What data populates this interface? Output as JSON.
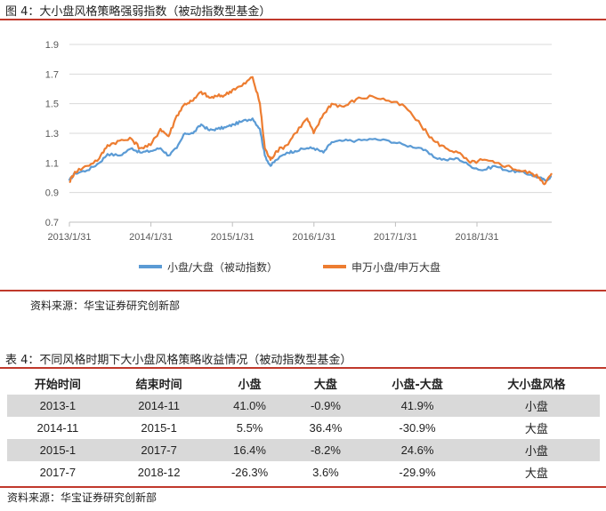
{
  "figure": {
    "title": "图 4：大小盘风格策略强弱指数（被动指数型基金）",
    "source": "资料来源：华宝证券研究创新部"
  },
  "colors": {
    "rule": "#c0392b",
    "series_blue": "#5b9bd5",
    "series_orange": "#ed7d31",
    "shade": "#d9d9d9"
  },
  "chart_data": {
    "type": "line",
    "title": "",
    "xlabel": "",
    "ylabel": "",
    "ylim": [
      0.7,
      1.9
    ],
    "y_ticks": [
      "0.7",
      "0.9",
      "1.1",
      "1.3",
      "1.5",
      "1.7",
      "1.9"
    ],
    "x_range": [
      2013.083,
      2019.0
    ],
    "x_ticks": [
      {
        "label": "2013/1/31",
        "t": 2013.083
      },
      {
        "label": "2014/1/31",
        "t": 2014.083
      },
      {
        "label": "2015/1/31",
        "t": 2015.083
      },
      {
        "label": "2016/1/31",
        "t": 2016.083
      },
      {
        "label": "2017/1/31",
        "t": 2017.083
      },
      {
        "label": "2018/1/31",
        "t": 2018.083
      }
    ],
    "legend_position": "bottom",
    "series": [
      {
        "name": "小盘/大盘（被动指数）",
        "color": "#5b9bd5",
        "points": [
          [
            2013.08,
            0.98
          ],
          [
            2013.15,
            1.03
          ],
          [
            2013.3,
            1.05
          ],
          [
            2013.45,
            1.1
          ],
          [
            2013.55,
            1.16
          ],
          [
            2013.7,
            1.15
          ],
          [
            2013.85,
            1.2
          ],
          [
            2013.95,
            1.17
          ],
          [
            2014.08,
            1.18
          ],
          [
            2014.2,
            1.2
          ],
          [
            2014.3,
            1.15
          ],
          [
            2014.4,
            1.2
          ],
          [
            2014.5,
            1.3
          ],
          [
            2014.6,
            1.3
          ],
          [
            2014.7,
            1.36
          ],
          [
            2014.8,
            1.32
          ],
          [
            2014.9,
            1.33
          ],
          [
            2015.0,
            1.34
          ],
          [
            2015.1,
            1.36
          ],
          [
            2015.2,
            1.38
          ],
          [
            2015.33,
            1.4
          ],
          [
            2015.42,
            1.33
          ],
          [
            2015.48,
            1.15
          ],
          [
            2015.55,
            1.08
          ],
          [
            2015.62,
            1.12
          ],
          [
            2015.75,
            1.17
          ],
          [
            2015.85,
            1.18
          ],
          [
            2016.0,
            1.2
          ],
          [
            2016.08,
            1.2
          ],
          [
            2016.2,
            1.17
          ],
          [
            2016.3,
            1.24
          ],
          [
            2016.45,
            1.25
          ],
          [
            2016.6,
            1.25
          ],
          [
            2016.8,
            1.26
          ],
          [
            2017.0,
            1.25
          ],
          [
            2017.2,
            1.22
          ],
          [
            2017.4,
            1.2
          ],
          [
            2017.55,
            1.14
          ],
          [
            2017.7,
            1.12
          ],
          [
            2017.85,
            1.13
          ],
          [
            2018.0,
            1.08
          ],
          [
            2018.15,
            1.05
          ],
          [
            2018.3,
            1.08
          ],
          [
            2018.45,
            1.05
          ],
          [
            2018.6,
            1.04
          ],
          [
            2018.75,
            1.02
          ],
          [
            2018.85,
            1.0
          ],
          [
            2018.92,
            0.98
          ],
          [
            2019.0,
            1.01
          ]
        ]
      },
      {
        "name": "申万小盘/申万大盘",
        "color": "#ed7d31",
        "points": [
          [
            2013.08,
            0.97
          ],
          [
            2013.15,
            1.04
          ],
          [
            2013.3,
            1.08
          ],
          [
            2013.45,
            1.13
          ],
          [
            2013.55,
            1.22
          ],
          [
            2013.7,
            1.25
          ],
          [
            2013.85,
            1.26
          ],
          [
            2013.95,
            1.2
          ],
          [
            2014.08,
            1.22
          ],
          [
            2014.2,
            1.33
          ],
          [
            2014.3,
            1.28
          ],
          [
            2014.4,
            1.42
          ],
          [
            2014.5,
            1.5
          ],
          [
            2014.6,
            1.52
          ],
          [
            2014.7,
            1.58
          ],
          [
            2014.8,
            1.54
          ],
          [
            2014.9,
            1.55
          ],
          [
            2015.0,
            1.56
          ],
          [
            2015.1,
            1.6
          ],
          [
            2015.2,
            1.62
          ],
          [
            2015.33,
            1.68
          ],
          [
            2015.42,
            1.5
          ],
          [
            2015.48,
            1.2
          ],
          [
            2015.55,
            1.12
          ],
          [
            2015.62,
            1.18
          ],
          [
            2015.75,
            1.22
          ],
          [
            2015.85,
            1.3
          ],
          [
            2016.0,
            1.4
          ],
          [
            2016.08,
            1.3
          ],
          [
            2016.2,
            1.43
          ],
          [
            2016.3,
            1.5
          ],
          [
            2016.45,
            1.48
          ],
          [
            2016.6,
            1.53
          ],
          [
            2016.8,
            1.55
          ],
          [
            2017.0,
            1.52
          ],
          [
            2017.2,
            1.48
          ],
          [
            2017.4,
            1.35
          ],
          [
            2017.55,
            1.25
          ],
          [
            2017.7,
            1.2
          ],
          [
            2017.85,
            1.17
          ],
          [
            2018.0,
            1.1
          ],
          [
            2018.15,
            1.12
          ],
          [
            2018.3,
            1.1
          ],
          [
            2018.45,
            1.08
          ],
          [
            2018.6,
            1.05
          ],
          [
            2018.75,
            1.03
          ],
          [
            2018.85,
            1.0
          ],
          [
            2018.92,
            0.96
          ],
          [
            2019.0,
            1.03
          ]
        ]
      }
    ]
  },
  "table": {
    "title": "表 4：不同风格时期下大小盘风格策略收益情况（被动指数型基金）",
    "headers": [
      "开始时间",
      "结束时间",
      "小盘",
      "大盘",
      "小盘-大盘",
      "大小盘风格"
    ],
    "rows": [
      [
        "2013-1",
        "2014-11",
        "41.0%",
        "-0.9%",
        "41.9%",
        "小盘"
      ],
      [
        "2014-11",
        "2015-1",
        "5.5%",
        "36.4%",
        "-30.9%",
        "大盘"
      ],
      [
        "2015-1",
        "2017-7",
        "16.4%",
        "-8.2%",
        "24.6%",
        "小盘"
      ],
      [
        "2017-7",
        "2018-12",
        "-26.3%",
        "3.6%",
        "-29.9%",
        "大盘"
      ]
    ],
    "source": "资料来源：华宝证券研究创新部"
  }
}
